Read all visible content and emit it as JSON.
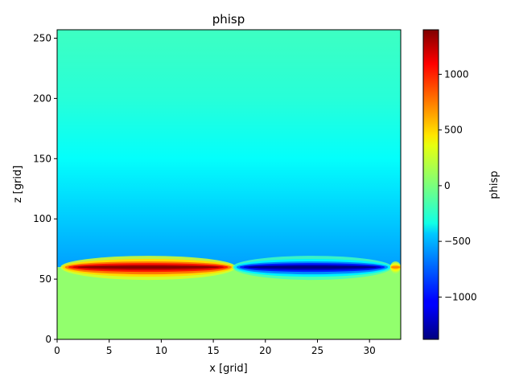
{
  "chart_data": {
    "type": "heatmap",
    "title": "phisp",
    "xlabel": "x [grid]",
    "ylabel": "z [grid]",
    "xlim": [
      0,
      33
    ],
    "ylim": [
      0,
      257
    ],
    "xticks": [
      0,
      5,
      10,
      15,
      20,
      25,
      30
    ],
    "yticks": [
      0,
      50,
      100,
      150,
      200,
      250
    ],
    "colormap": "jet",
    "colorbar": {
      "label": "phisp",
      "range": [
        -1380,
        1400
      ],
      "ticks": [
        -1000,
        -500,
        0,
        500,
        1000
      ]
    },
    "field": {
      "background_value": -120,
      "surface_z": 60,
      "below_surface_value": 60,
      "upper_gradient": [
        {
          "z": 60,
          "value": -600
        },
        {
          "z": 100,
          "value": -480
        },
        {
          "z": 150,
          "value": -330
        },
        {
          "z": 200,
          "value": -230
        },
        {
          "z": 257,
          "value": -170
        }
      ],
      "lobes": [
        {
          "x_start": 0.5,
          "x_end": 17,
          "z_center": 60,
          "peak": 1380,
          "label": "positive lobe"
        },
        {
          "x_start": 17,
          "x_end": 32,
          "z_center": 60,
          "peak": -1380,
          "label": "negative lobe"
        },
        {
          "x_start": 32,
          "x_end": 33,
          "z_center": 60,
          "peak": 700,
          "label": "edge lobe"
        }
      ]
    }
  }
}
